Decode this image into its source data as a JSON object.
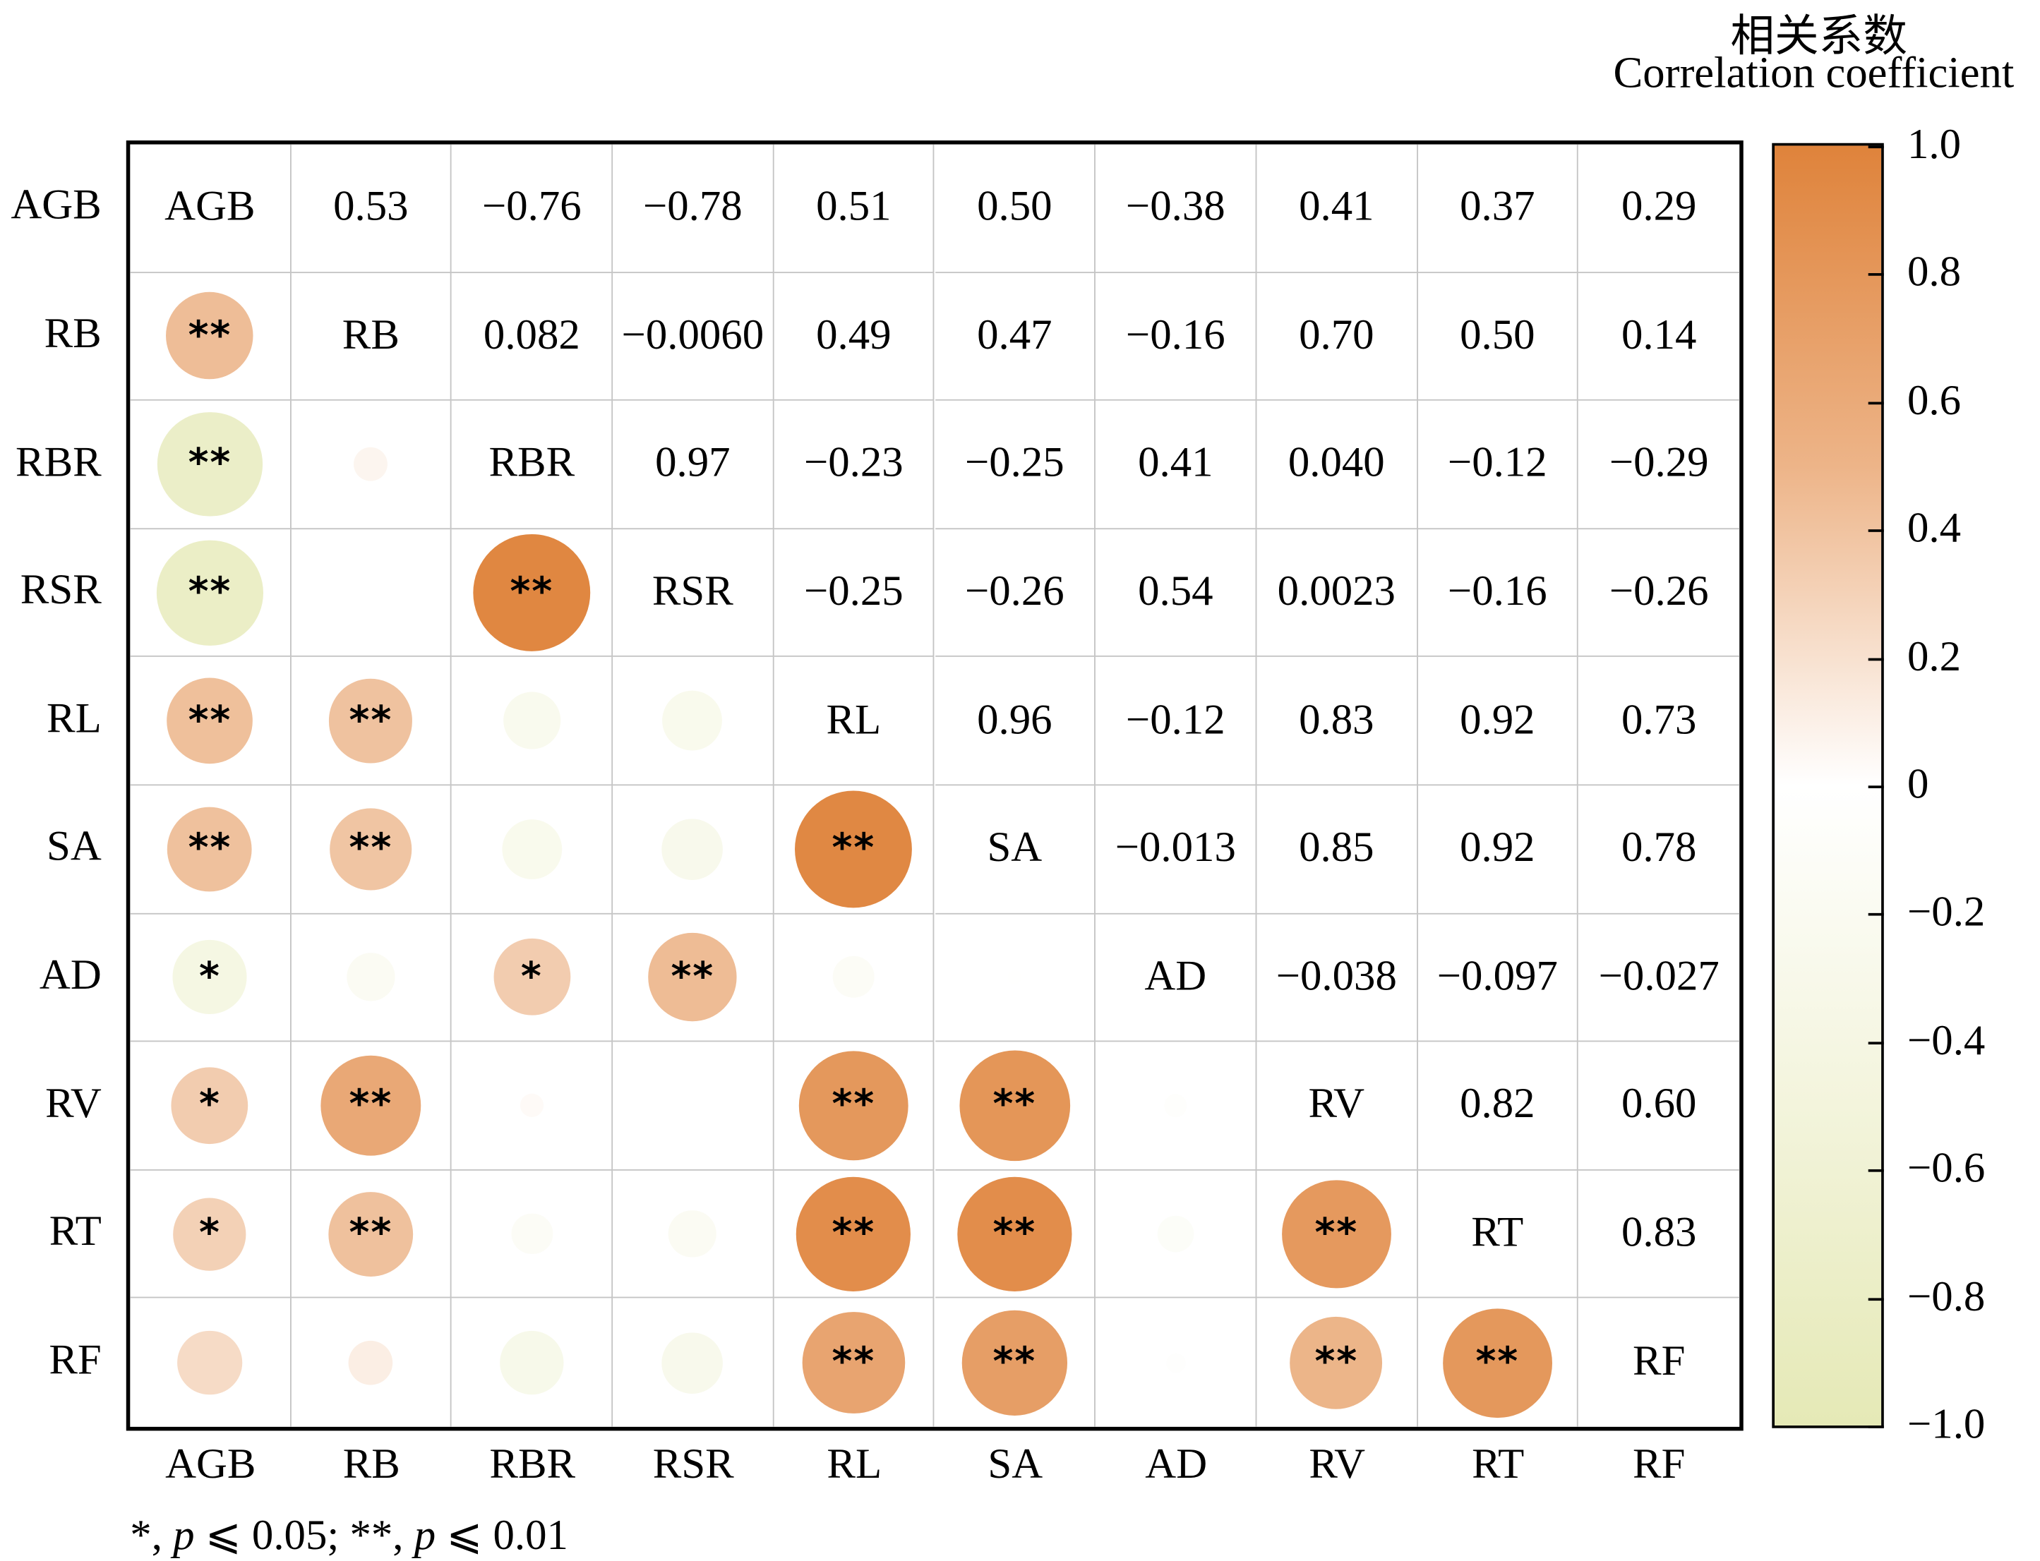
{
  "chart_data": {
    "type": "heatmap",
    "title": "相关系数",
    "subtitle": "Correlation coefficient",
    "variables": [
      "AGB",
      "RB",
      "RBR",
      "RSR",
      "RL",
      "SA",
      "AD",
      "RV",
      "RT",
      "RF"
    ],
    "upper_values": [
      [
        "AGB",
        "0.53",
        "−0.76",
        "−0.78",
        "0.51",
        "0.50",
        "−0.38",
        "0.41",
        "0.37",
        "0.29"
      ],
      [
        "",
        "RB",
        "0.082",
        "−0.0060",
        "0.49",
        "0.47",
        "−0.16",
        "0.70",
        "0.50",
        "0.14"
      ],
      [
        "",
        "",
        "RBR",
        "0.97",
        "−0.23",
        "−0.25",
        "0.41",
        "0.040",
        "−0.12",
        "−0.29"
      ],
      [
        "",
        "",
        "",
        "RSR",
        "−0.25",
        "−0.26",
        "0.54",
        "0.0023",
        "−0.16",
        "−0.26"
      ],
      [
        "",
        "",
        "",
        "",
        "RL",
        "0.96",
        "−0.12",
        "0.83",
        "0.92",
        "0.73"
      ],
      [
        "",
        "",
        "",
        "",
        "",
        "SA",
        "−0.013",
        "0.85",
        "0.92",
        "0.78"
      ],
      [
        "",
        "",
        "",
        "",
        "",
        "",
        "AD",
        "−0.038",
        "−0.097",
        "−0.027"
      ],
      [
        "",
        "",
        "",
        "",
        "",
        "",
        "",
        "RV",
        "0.82",
        "0.60"
      ],
      [
        "",
        "",
        "",
        "",
        "",
        "",
        "",
        "",
        "RT",
        "0.83"
      ],
      [
        "",
        "",
        "",
        "",
        "",
        "",
        "",
        "",
        "",
        "RF"
      ]
    ],
    "significance_lower": [
      [],
      [
        "**"
      ],
      [
        "**",
        ""
      ],
      [
        "**",
        "",
        "**"
      ],
      [
        "**",
        "**",
        "",
        ""
      ],
      [
        "**",
        "**",
        "",
        "",
        "**"
      ],
      [
        "*",
        "",
        "*",
        "**",
        "",
        ""
      ],
      [
        "*",
        "**",
        "",
        "",
        "**",
        "**",
        ""
      ],
      [
        "*",
        "**",
        "",
        "",
        "**",
        "**",
        "",
        "**"
      ],
      [
        "",
        "",
        "",
        "",
        "**",
        "**",
        "",
        "**",
        "**"
      ]
    ],
    "colorbar": {
      "range": [
        -1.0,
        1.0
      ],
      "ticks": [
        "1.0",
        "0.8",
        "0.6",
        "0.4",
        "0.2",
        "0",
        "−0.2",
        "−0.4",
        "−0.6",
        "−0.8",
        "−1.0"
      ],
      "colors": {
        "positive": "#df833b",
        "zero": "#ffffff",
        "negative": "#e5e9b6"
      }
    },
    "footnote": {
      "star1": "*,",
      "p": "p",
      "le1": " ⩽ 0.05; ",
      "star2": "**,",
      "le2": " ⩽ 0.01"
    }
  }
}
